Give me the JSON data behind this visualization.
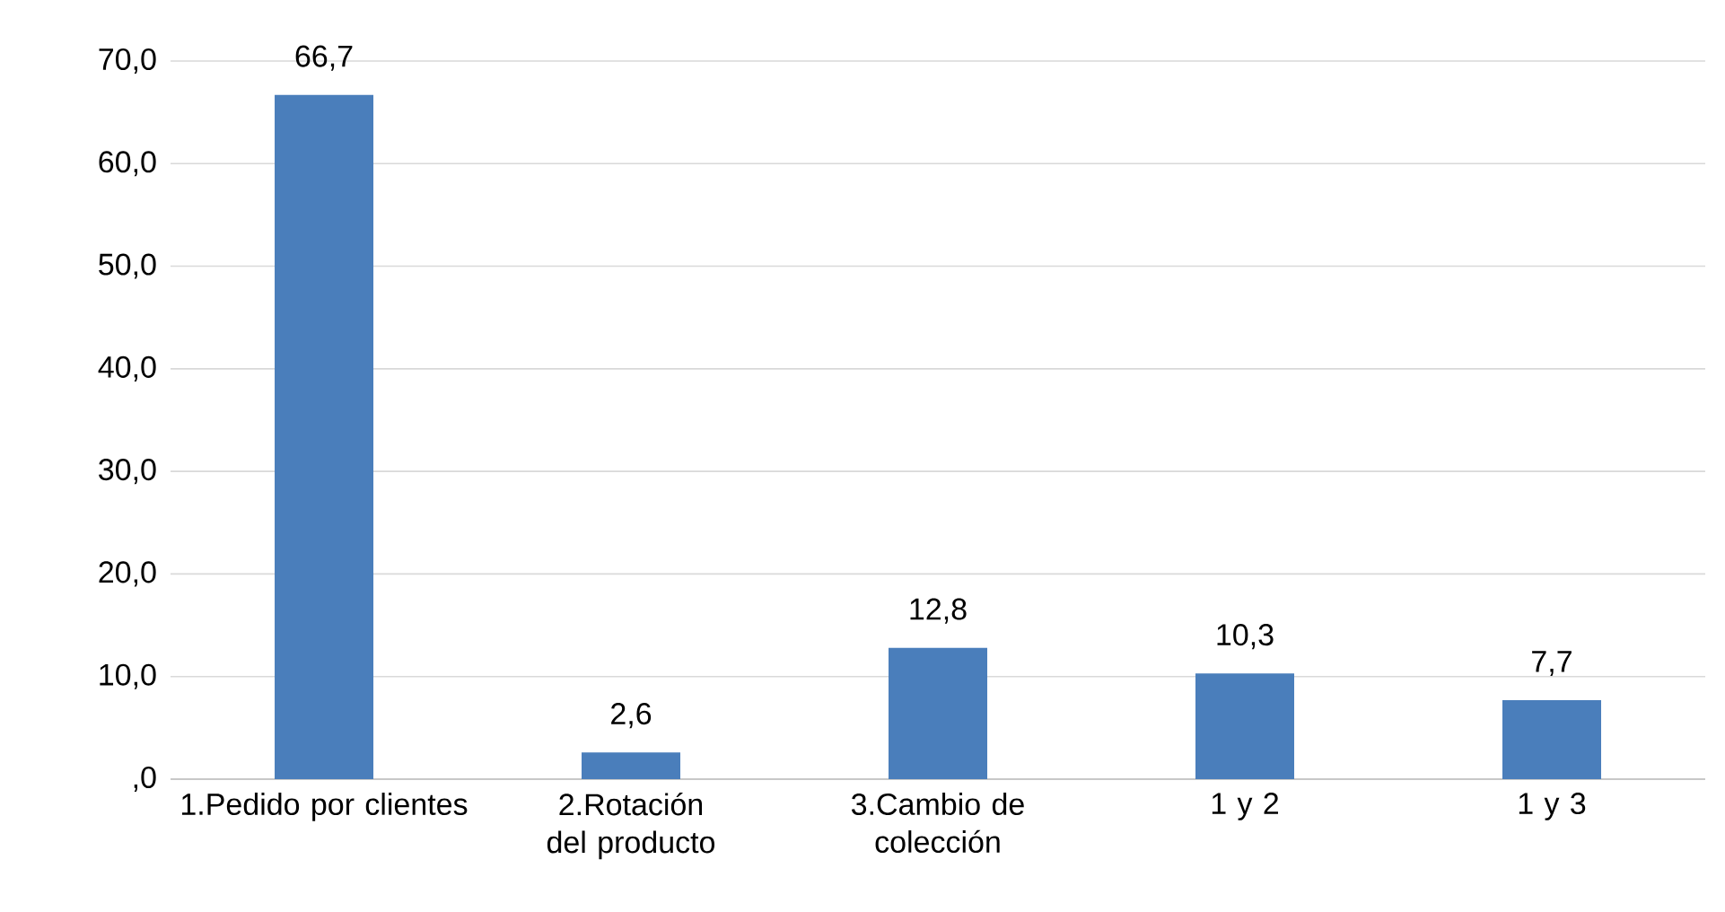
{
  "chart_data": {
    "type": "bar",
    "categories": [
      "1.Pedido por clientes",
      "2.Rotación del producto",
      "3.Cambio de colección",
      "1 y 2",
      "1 y 3"
    ],
    "values": [
      66.7,
      2.6,
      12.8,
      10.3,
      7.7
    ],
    "value_labels": [
      "66,7",
      "2,6",
      "12,8",
      "10,3",
      "7,7"
    ],
    "color": "#4a7ebb",
    "ylim": [
      0,
      70
    ],
    "yticks": [
      {
        "value": 0,
        "label": ",0"
      },
      {
        "value": 10,
        "label": "10,0"
      },
      {
        "value": 20,
        "label": "20,0"
      },
      {
        "value": 30,
        "label": "30,0"
      },
      {
        "value": 40,
        "label": "40,0"
      },
      {
        "value": 50,
        "label": "50,0"
      },
      {
        "value": 60,
        "label": "60,0"
      },
      {
        "value": 70,
        "label": "70,0"
      }
    ],
    "grid": "y"
  }
}
